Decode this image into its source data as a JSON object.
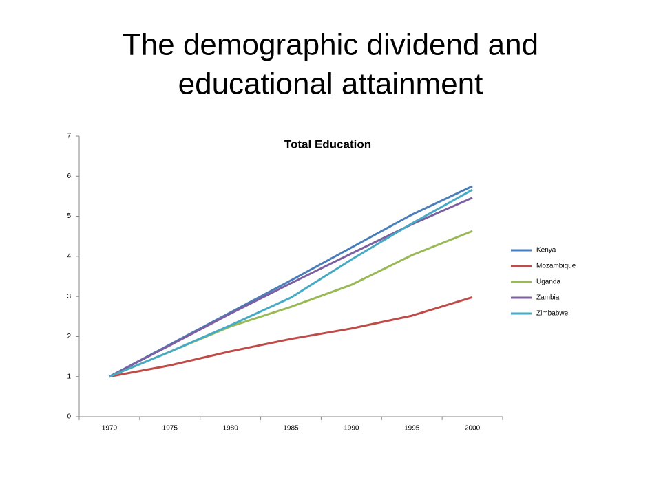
{
  "slide_title": [
    "The demographic dividend and",
    "educational attainment"
  ],
  "chart_data": {
    "type": "line",
    "title": "Total Education",
    "categories": [
      "1970",
      "1975",
      "1980",
      "1985",
      "1990",
      "1995",
      "2000"
    ],
    "series": [
      {
        "name": "Kenya",
        "color": "#4a7ebb",
        "values": [
          1,
          1.8,
          2.6,
          3.4,
          4.22,
          5.04,
          5.75
        ]
      },
      {
        "name": "Mozambique",
        "color": "#be4b48",
        "values": [
          1,
          1.28,
          1.63,
          1.94,
          2.2,
          2.52,
          2.98
        ]
      },
      {
        "name": "Uganda",
        "color": "#98b954",
        "values": [
          1,
          1.62,
          2.25,
          2.74,
          3.29,
          4.03,
          4.63
        ]
      },
      {
        "name": "Zambia",
        "color": "#7d60a0",
        "values": [
          1,
          1.78,
          2.57,
          3.33,
          4.07,
          4.8,
          5.46
        ]
      },
      {
        "name": "Zimbabwe",
        "color": "#46aac5",
        "values": [
          1,
          1.62,
          2.28,
          2.97,
          3.92,
          4.82,
          5.66
        ]
      }
    ],
    "ylim": [
      0,
      7
    ],
    "yticks": [
      0,
      1,
      2,
      3,
      4,
      5,
      6,
      7
    ],
    "grid": false,
    "legend": "right"
  }
}
